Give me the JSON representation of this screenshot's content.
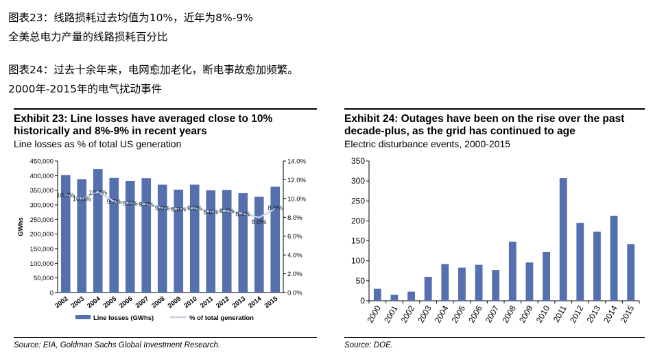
{
  "header": {
    "line1": "图表23：线路损耗过去均值为10%，近年为8%-9%",
    "line2": "全美总电力产量的线路损耗百分比",
    "line3": "图表24：过去十余年来，电网愈加老化，断电事故愈加频繁。",
    "line4": "2000年-2015年的电气扰动事件"
  },
  "left": {
    "title_line1": "Exhibit 23: Line losses have averaged close to 10%",
    "title_line2": "historically and 8%-9% in recent years",
    "subtitle": "Line losses as % of total US generation",
    "source": "Source: EIA, Goldman Sachs Global Investment Research."
  },
  "right": {
    "title_line1": "Exhibit 24: Outages have been on the rise over the past",
    "title_line2": "decade-plus, as the grid has continued to age",
    "subtitle": "Electric disturbance events, 2000-2015",
    "source": "Source: DOE."
  },
  "colors": {
    "bar": "#5470ae",
    "line": "#c5d1e6",
    "text": "#000000"
  },
  "chart_data": [
    {
      "type": "bar",
      "ylabel": "GWhs",
      "ylim": [
        0,
        450000
      ],
      "y2lim": [
        0,
        14
      ],
      "yticks": [
        "0",
        "50,000",
        "100,000",
        "150,000",
        "200,000",
        "250,000",
        "300,000",
        "350,000",
        "400,000",
        "450,000"
      ],
      "y2ticks": [
        "0.0%",
        "2.0%",
        "4.0%",
        "6.0%",
        "8.0%",
        "10.0%",
        "12.0%",
        "14.0%"
      ],
      "categories": [
        "2002",
        "2003",
        "2004",
        "2005",
        "2006",
        "2007",
        "2008",
        "2009",
        "2010",
        "2011",
        "2012",
        "2013",
        "2014",
        "2015"
      ],
      "series": [
        {
          "name": "Line losses (GWhs)",
          "type": "bar",
          "values": [
            402000,
            388000,
            422000,
            392000,
            382000,
            391000,
            369000,
            352000,
            369000,
            350000,
            351000,
            340000,
            328000,
            362000
          ]
        },
        {
          "name": "% of total generation",
          "type": "line",
          "axis": "right",
          "values": [
            10.4,
            10.0,
            10.7,
            9.7,
            9.5,
            9.4,
            9.0,
            8.9,
            9.0,
            8.6,
            8.7,
            8.4,
            8.0,
            8.9
          ],
          "labels": [
            "10.4%",
            "10.0%",
            "10.7%",
            "9.7%",
            "9.5%",
            "9.4%",
            "9.0%",
            "8.9%",
            "9.0%",
            "8.6%",
            "8.7%",
            "8.4%",
            "8.0%",
            "8.9%"
          ]
        }
      ],
      "legend": "bottom"
    },
    {
      "type": "bar",
      "ylim": [
        0,
        350
      ],
      "yticks": [
        "0",
        "50",
        "100",
        "150",
        "200",
        "250",
        "300",
        "350"
      ],
      "categories": [
        "2000",
        "2001",
        "2002",
        "2003",
        "2004",
        "2005",
        "2006",
        "2007",
        "2008",
        "2009",
        "2010",
        "2011",
        "2012",
        "2013",
        "2014",
        "2015"
      ],
      "values": [
        30,
        15,
        23,
        60,
        92,
        83,
        90,
        77,
        148,
        96,
        122,
        307,
        195,
        173,
        213,
        142
      ]
    }
  ]
}
